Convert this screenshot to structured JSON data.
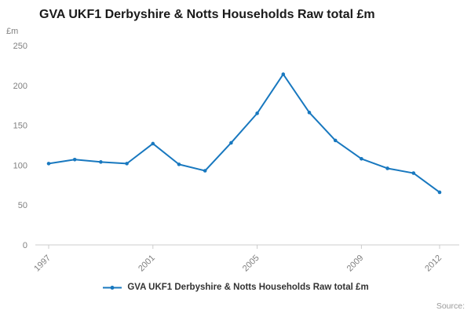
{
  "chart": {
    "title": "GVA UKF1 Derbyshire & Notts Households Raw total £m",
    "y_axis_unit": "£m",
    "legend_label": "GVA UKF1 Derbyshire & Notts Households Raw total £m",
    "source_label": "Source:",
    "line_color": "#1878bf",
    "axis_line_color": "#cccccc",
    "tick_text_color": "#808080"
  },
  "chart_data": {
    "type": "line",
    "x": [
      1997,
      1998,
      1999,
      2000,
      2001,
      2002,
      2003,
      2004,
      2005,
      2006,
      2007,
      2008,
      2009,
      2010,
      2011,
      2012
    ],
    "series": [
      {
        "name": "GVA UKF1 Derbyshire & Notts Households Raw total £m",
        "values": [
          102,
          107,
          104,
          102,
          127,
          101,
          93,
          128,
          165,
          214,
          166,
          131,
          108,
          96,
          90,
          66
        ]
      }
    ],
    "title": "GVA UKF1 Derbyshire & Notts Households Raw total £m",
    "xlabel": "",
    "ylabel": "£m",
    "ylim": [
      0,
      250
    ],
    "yticks": [
      0,
      50,
      100,
      150,
      200,
      250
    ],
    "xticks": [
      1997,
      2001,
      2005,
      2009,
      2012
    ],
    "grid": false,
    "legend_position": "bottom",
    "marker": "circle"
  }
}
